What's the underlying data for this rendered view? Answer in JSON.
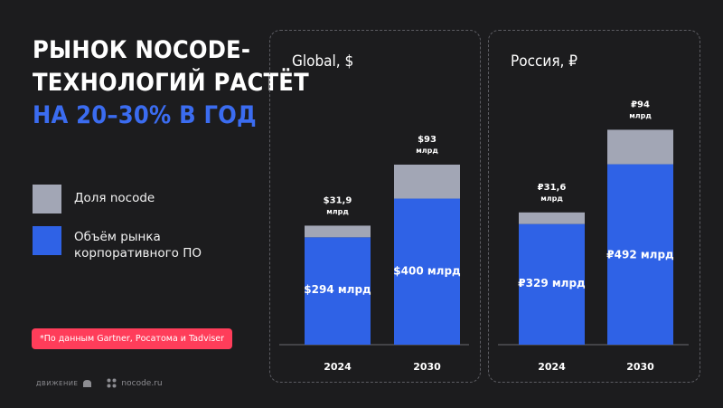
{
  "header": {
    "title_line1": "РЫНОК NOCODE-",
    "title_line2": "ТЕХНОЛОГИЙ РАСТЁТ",
    "title_line3": "НА 20–30% В ГОД"
  },
  "legend": {
    "items": [
      {
        "label": "Доля nocode",
        "color": "#a2a6b5"
      },
      {
        "label": "Объём рынка корпоративного ПО",
        "color": "#2f62e6"
      }
    ]
  },
  "source_note": "*По данным Gartner, Росатома и Tadviser",
  "footer": {
    "logo1": "ДВИЖЕНИЕ",
    "logo2": "nocode.ru"
  },
  "colors": {
    "accent_blue": "#2f62e6",
    "title_blue": "#3b6cf0",
    "nocode_gray": "#a2a6b5",
    "badge_red": "#ff3d5a",
    "background": "#1c1c1e"
  },
  "chart_data": [
    {
      "type": "bar",
      "title": "Global, $",
      "categories": [
        "2024",
        "2030"
      ],
      "series": [
        {
          "name": "Объём рынка корпоративного ПО",
          "values": [
            294,
            400
          ],
          "labels": [
            "$294 млрд",
            "$400 млрд"
          ]
        },
        {
          "name": "Доля nocode",
          "values": [
            31.9,
            93
          ],
          "labels": [
            "$31,9\nмлрд",
            "$93\nмлрд"
          ]
        }
      ],
      "stacked": true
    },
    {
      "type": "bar",
      "title": "Россия, ₽",
      "categories": [
        "2024",
        "2030"
      ],
      "series": [
        {
          "name": "Объём рынка корпоративного ПО",
          "values": [
            329,
            492
          ],
          "labels": [
            "₽329 млрд",
            "₽492 млрд"
          ]
        },
        {
          "name": "Доля nocode",
          "values": [
            31.6,
            94
          ],
          "labels": [
            "₽31,6\nмлрд",
            "₽94\nмлрд"
          ]
        }
      ],
      "stacked": true
    }
  ]
}
